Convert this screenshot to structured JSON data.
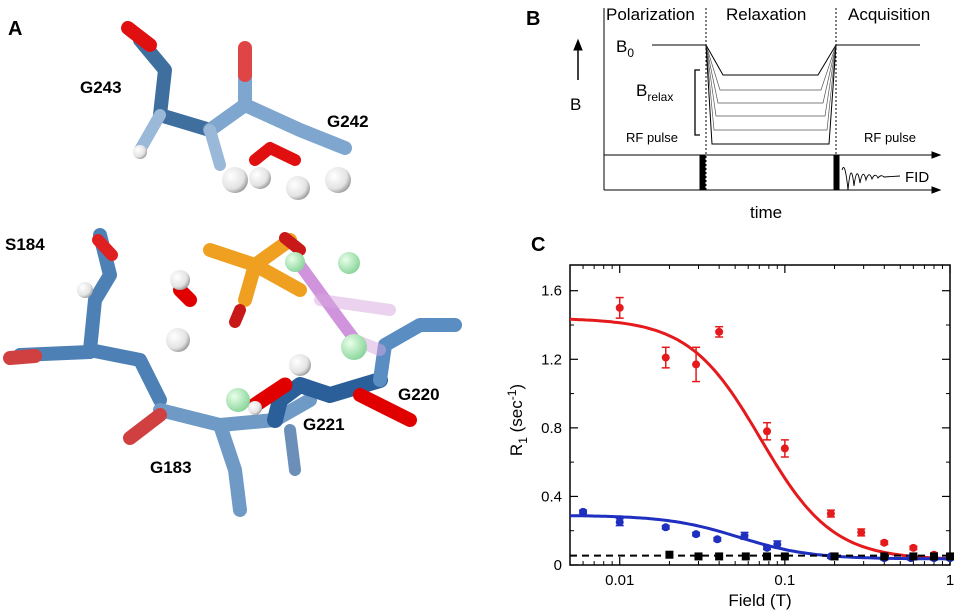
{
  "panels": {
    "a": "A",
    "b": "B",
    "c": "C"
  },
  "structure": {
    "residues": [
      "G243",
      "G242",
      "S184",
      "G220",
      "G221",
      "G183"
    ]
  },
  "pulse_diagram": {
    "phases": [
      "Polarization",
      "Relaxation",
      "Acquisition"
    ],
    "b0_label": "B",
    "b0_sub": "0",
    "b_axis": "B",
    "brelax_label": "B",
    "brelax_sub": "relax",
    "rf_pulse_left": "RF pulse",
    "rf_pulse_right": "RF pulse",
    "fid": "FID",
    "time_label": "time"
  },
  "chart": {
    "ylabel_main": "R",
    "ylabel_sub": "1",
    "ylabel_unit_pre": " (sec",
    "ylabel_unit_sup": "-1",
    "ylabel_unit_post": ")",
    "xlabel": "Field (T)",
    "x_ticks": [
      "0.01",
      "0.1",
      "1"
    ],
    "y_ticks": [
      "0",
      "0.4",
      "0.8",
      "1.2",
      "1.6"
    ]
  },
  "colors": {
    "red": "#e41a1c",
    "blue": "#1f2fbf",
    "black": "#000000",
    "steel": "#5b8cc1"
  },
  "chart_data": {
    "type": "scatter",
    "x_scale": "log",
    "xlim": [
      0.005,
      1
    ],
    "ylim": [
      0,
      1.75
    ],
    "series": [
      {
        "color": "red",
        "x": [
          0.01,
          0.019,
          0.029,
          0.04,
          0.078,
          0.1,
          0.19,
          0.29,
          0.4,
          0.6,
          0.8,
          1.0
        ],
        "y": [
          1.5,
          1.21,
          1.17,
          1.36,
          0.78,
          0.68,
          0.3,
          0.19,
          0.13,
          0.1,
          0.06,
          0.05
        ],
        "err": [
          0.06,
          0.06,
          0.1,
          0.03,
          0.05,
          0.05,
          0.02,
          0.02,
          0.01,
          0.01,
          0.01,
          0.01
        ],
        "fit": {
          "type": "lorentzian",
          "y0": 0.03,
          "a": 1.41,
          "tau": 14.0
        }
      },
      {
        "color": "blue",
        "x": [
          0.006,
          0.01,
          0.019,
          0.029,
          0.039,
          0.057,
          0.078,
          0.09,
          0.19,
          0.4,
          0.58,
          0.8,
          1.0
        ],
        "y": [
          0.31,
          0.25,
          0.22,
          0.18,
          0.15,
          0.17,
          0.1,
          0.12,
          0.05,
          0.04,
          0.04,
          0.04,
          0.04
        ],
        "err": [
          0.01,
          0.02,
          0.01,
          0.01,
          0.01,
          0.02,
          0.01,
          0.02,
          0.01,
          0.01,
          0.01,
          0.01,
          0.01
        ],
        "fit": {
          "type": "lorentzian",
          "y0": 0.035,
          "a": 0.255,
          "tau": 19.0
        }
      },
      {
        "color": "black",
        "x": [
          0.02,
          0.03,
          0.04,
          0.058,
          0.078,
          0.1,
          0.2,
          0.4,
          0.6,
          0.8,
          1.0
        ],
        "y": [
          0.06,
          0.05,
          0.05,
          0.05,
          0.05,
          0.05,
          0.05,
          0.05,
          0.05,
          0.05,
          0.05
        ],
        "fit": {
          "type": "constant",
          "y0": 0.055,
          "dashed": true
        }
      }
    ]
  }
}
